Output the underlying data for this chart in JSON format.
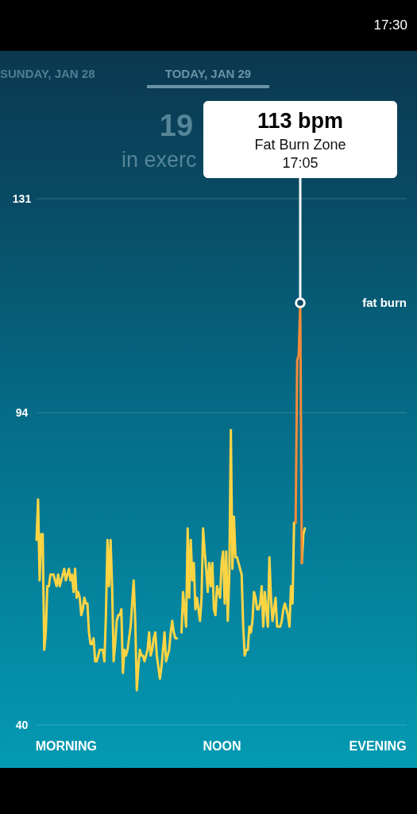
{
  "chart_data": {
    "type": "line",
    "annotations": [
      "SUNDAY, JAN 28",
      "TODAY, JAN 29",
      "19",
      "in exerc",
      "113 bpm",
      "Fat Burn Zone",
      {
        "text": "17:05",
        "y": 113
      },
      "fat burn",
      "17:30"
    ],
    "categories": [
      null,
      null,
      null,
      null,
      null,
      null,
      null,
      null,
      null,
      null,
      null,
      null,
      null,
      null,
      null,
      null,
      null,
      null,
      null,
      "MORNING",
      null,
      null,
      null,
      null,
      null,
      null,
      null,
      null,
      null,
      null,
      null,
      null,
      null,
      null,
      null,
      null,
      null,
      null,
      null,
      null,
      null,
      null,
      null,
      null,
      null,
      null,
      null,
      null,
      null,
      null,
      null,
      null,
      null,
      null,
      null,
      null,
      null,
      null,
      null,
      null,
      null,
      null,
      null,
      null,
      null,
      null,
      null,
      null,
      null,
      null,
      null,
      null,
      null,
      null,
      null,
      null,
      null,
      null,
      null,
      null,
      null,
      null,
      null,
      null,
      null,
      null,
      null,
      null,
      null,
      null,
      null,
      null,
      null,
      null,
      null,
      null,
      null,
      null,
      null,
      null,
      null,
      null,
      null,
      null,
      null,
      null,
      null,
      null,
      null,
      null,
      null,
      null,
      null,
      null,
      null,
      null,
      null,
      null,
      null,
      null,
      "NOON",
      null,
      null,
      null,
      null,
      null,
      null,
      null,
      null,
      null,
      null,
      null,
      null,
      null,
      null,
      null,
      null,
      null,
      null,
      null,
      null,
      null,
      null,
      null,
      null,
      null,
      null,
      null,
      null,
      null,
      null,
      null,
      null,
      null,
      null,
      null,
      null,
      null,
      null,
      null,
      null,
      null,
      null,
      null,
      null,
      null,
      null,
      null,
      null,
      null,
      null,
      null,
      null,
      null,
      null,
      null,
      null,
      null,
      null,
      null,
      null,
      null,
      null,
      null,
      null,
      null,
      null,
      null,
      null,
      null,
      null,
      null,
      null,
      null,
      null,
      null,
      null,
      null,
      null,
      null,
      null,
      null,
      null,
      null,
      null,
      null,
      null,
      null,
      null,
      null,
      null,
      null,
      null,
      null,
      null,
      null,
      null,
      null,
      null,
      null,
      null,
      "EVENING",
      null,
      null,
      null,
      null,
      null,
      null,
      null,
      null,
      null,
      null,
      null,
      null,
      null,
      null,
      null,
      null,
      null,
      null,
      null
    ],
    "series": [
      {
        "color": "#fdd444",
        "values": [
          72,
          79,
          65,
          73,
          73,
          53,
          56,
          64,
          64,
          66,
          66,
          66,
          65,
          64,
          66,
          64,
          65,
          66,
          67,
          65,
          66,
          67,
          65,
          66,
          63,
          67,
          62,
          63,
          62,
          59,
          60,
          62,
          61,
          61,
          56,
          54,
          54,
          55,
          51,
          51,
          52,
          53,
          53,
          53,
          51,
          59,
          72,
          64,
          72,
          64,
          51,
          54,
          58,
          59,
          59,
          60,
          49,
          53,
          52,
          53,
          55,
          57,
          61,
          65,
          58,
          46,
          50,
          53,
          52,
          52,
          51,
          52,
          53,
          56,
          52,
          53,
          55,
          56,
          52,
          50,
          48,
          50,
          53,
          56,
          51,
          52,
          53,
          56,
          58,
          56,
          55,
          55,
          null,
          null,
          56,
          63,
          60,
          57,
          74,
          62,
          72,
          65,
          68,
          60,
          62,
          60,
          58,
          62,
          74,
          70,
          67,
          63,
          68,
          64,
          68,
          60,
          59,
          64,
          63,
          62,
          68,
          70,
          61,
          70,
          58,
          66,
          91,
          67,
          76,
          69,
          69,
          68,
          67,
          66,
          57,
          52,
          53,
          53,
          57,
          56,
          58,
          63,
          62,
          60,
          60,
          61,
          64,
          57,
          63,
          60,
          57,
          69,
          62,
          58,
          60,
          62,
          57,
          57,
          57,
          58,
          60,
          61,
          60,
          59,
          57,
          64,
          61,
          75,
          75,
          null,
          null,
          null,
          68,
          73,
          74,
          null,
          null,
          null,
          null,
          null,
          null,
          null,
          null,
          null,
          null,
          null,
          null,
          null,
          null,
          null,
          null,
          null,
          null,
          null,
          null,
          null,
          null,
          null,
          null,
          null,
          null,
          null,
          null,
          null,
          null,
          null,
          null,
          null,
          null,
          null,
          null,
          null,
          null,
          null,
          null,
          null,
          null,
          null,
          null,
          null,
          null,
          null,
          null,
          null,
          null,
          null,
          null,
          null,
          null,
          null,
          null,
          null,
          null,
          null,
          null,
          null,
          null,
          null,
          null,
          null,
          null
        ]
      },
      {
        "color": "#f48b3b",
        "values": [
          null,
          null,
          null,
          null,
          null,
          null,
          null,
          null,
          null,
          null,
          null,
          null,
          null,
          null,
          null,
          null,
          null,
          null,
          null,
          null,
          null,
          null,
          null,
          null,
          null,
          null,
          null,
          null,
          null,
          null,
          null,
          null,
          null,
          null,
          null,
          null,
          null,
          null,
          null,
          null,
          null,
          null,
          null,
          null,
          null,
          null,
          null,
          null,
          null,
          null,
          null,
          null,
          null,
          null,
          null,
          null,
          null,
          null,
          null,
          null,
          null,
          null,
          null,
          null,
          null,
          null,
          null,
          null,
          null,
          null,
          null,
          null,
          null,
          null,
          null,
          null,
          null,
          null,
          null,
          null,
          null,
          null,
          null,
          null,
          null,
          null,
          null,
          null,
          null,
          null,
          null,
          null,
          null,
          null,
          null,
          null,
          null,
          null,
          null,
          null,
          null,
          null,
          null,
          null,
          null,
          null,
          null,
          null,
          null,
          null,
          null,
          null,
          null,
          null,
          null,
          null,
          null,
          null,
          null,
          null,
          null,
          null,
          null,
          null,
          null,
          null,
          null,
          null,
          null,
          null,
          null,
          null,
          null,
          null,
          null,
          null,
          null,
          null,
          null,
          null,
          null,
          null,
          null,
          null,
          null,
          null,
          null,
          null,
          null,
          null,
          null,
          null,
          null,
          null,
          null,
          null,
          null,
          null,
          null,
          null,
          null,
          null,
          null,
          null,
          null,
          null,
          null,
          null,
          75,
          103,
          104,
          113,
          68,
          null,
          null,
          null,
          null,
          null,
          null,
          null,
          null,
          null,
          null,
          null,
          null,
          null,
          null,
          null,
          null,
          null,
          null,
          null,
          null,
          null,
          null,
          null,
          null,
          null,
          null,
          null,
          null,
          null,
          null,
          null,
          null,
          null,
          null,
          null,
          null,
          null,
          null,
          null,
          null,
          null,
          null,
          null,
          null,
          null,
          null,
          null,
          null,
          null,
          null,
          null,
          null,
          null,
          null,
          null,
          null,
          null,
          null,
          null,
          null,
          null,
          null,
          null,
          null,
          null,
          null,
          null,
          null
        ]
      }
    ],
    "ylim": [
      40,
      131
    ],
    "yticks": [
      40,
      94,
      131
    ],
    "grid": "y"
  }
}
